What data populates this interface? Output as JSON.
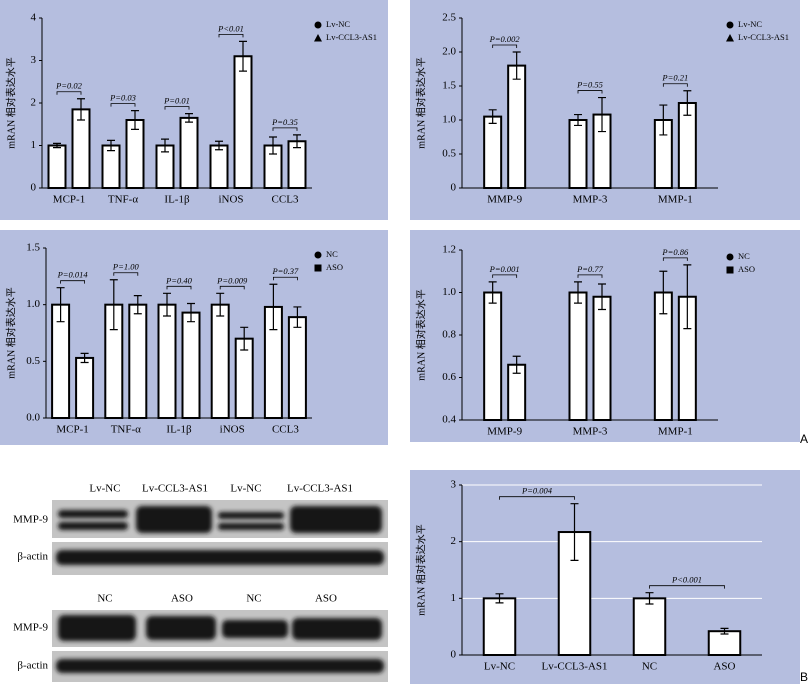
{
  "chart_data": [
    {
      "type": "bar",
      "ylabel": "mRAN 相对表达水平",
      "categories": [
        "MCP-1",
        "TNF-α",
        "IL-1β",
        "iNOS",
        "CCL3"
      ],
      "ylim": [
        0,
        4
      ],
      "yticks": [
        0,
        1,
        2,
        3,
        4
      ],
      "legend": "top-right",
      "series": [
        {
          "name": "Lv-NC",
          "color": "#000000",
          "marker": "circle",
          "values": [
            1.0,
            1.0,
            1.0,
            1.0,
            1.0
          ],
          "errors": [
            0.05,
            0.12,
            0.15,
            0.1,
            0.2
          ]
        },
        {
          "name": "Lv-CCL3-AS1",
          "color": "#000000",
          "marker": "triangle",
          "values": [
            1.85,
            1.6,
            1.65,
            3.1,
            1.1
          ],
          "errors": [
            0.25,
            0.22,
            0.1,
            0.35,
            0.15
          ]
        }
      ],
      "annotations": [
        {
          "text": "P=0.02",
          "category": "MCP-1"
        },
        {
          "text": "P=0.03",
          "category": "TNF-α"
        },
        {
          "text": "P=0.01",
          "category": "IL-1β"
        },
        {
          "text": "P<0.01",
          "category": "iNOS"
        },
        {
          "text": "P=0.35",
          "category": "CCL3"
        }
      ]
    },
    {
      "type": "bar",
      "ylabel": "mRAN 相对表达水平",
      "categories": [
        "MMP-9",
        "MMP-3",
        "MMP-1"
      ],
      "ylim": [
        0,
        2.5
      ],
      "yticks": [
        0,
        0.5,
        {
          "value": 1,
          "label": "1.0"
        },
        1.5,
        {
          "value": 2,
          "label": "2.0"
        },
        2.5
      ],
      "legend": "top-right",
      "series": [
        {
          "name": "Lv-NC",
          "color": "#000000",
          "marker": "circle",
          "values": [
            1.05,
            1.0,
            1.0
          ],
          "errors": [
            0.1,
            0.08,
            0.22
          ]
        },
        {
          "name": "Lv-CCL3-AS1",
          "color": "#000000",
          "marker": "triangle",
          "values": [
            1.8,
            1.08,
            1.25
          ],
          "errors": [
            0.2,
            0.25,
            0.18
          ]
        }
      ],
      "annotations": [
        {
          "text": "P=0.002",
          "category": "MMP-9"
        },
        {
          "text": "P=0.55",
          "category": "MMP-3"
        },
        {
          "text": "P=0.21",
          "category": "MMP-1"
        }
      ]
    },
    {
      "type": "bar",
      "ylabel": "mRAN 相对表达水平",
      "categories": [
        "MCP-1",
        "TNF-α",
        "IL-1β",
        "iNOS",
        "CCL3"
      ],
      "ylim": [
        0,
        1.5
      ],
      "yticks": [
        {
          "value": 0,
          "label": "0.0"
        },
        0.5,
        {
          "value": 1,
          "label": "1.0"
        },
        1.5
      ],
      "legend": "top-right",
      "series": [
        {
          "name": "NC",
          "color": "#000000",
          "marker": "circle",
          "values": [
            1.0,
            1.0,
            1.0,
            1.0,
            0.98
          ],
          "errors": [
            0.15,
            0.22,
            0.1,
            0.1,
            0.2
          ]
        },
        {
          "name": "ASO",
          "color": "#000000",
          "marker": "square",
          "values": [
            0.53,
            1.0,
            0.93,
            0.7,
            0.89
          ],
          "errors": [
            0.04,
            0.08,
            0.08,
            0.1,
            0.09
          ]
        }
      ],
      "annotations": [
        {
          "text": "P=0.014",
          "category": "MCP-1"
        },
        {
          "text": "P=1.00",
          "category": "TNF-α"
        },
        {
          "text": "P=0.40",
          "category": "IL-1β"
        },
        {
          "text": "P=0.009",
          "category": "iNOS"
        },
        {
          "text": "P=0.37",
          "category": "CCL3"
        }
      ]
    },
    {
      "type": "bar",
      "ylabel": "mRAN 相对表达水平",
      "categories": [
        "MMP-9",
        "MMP-3",
        "MMP-1"
      ],
      "ylim": [
        0.4,
        1.2
      ],
      "yticks": [
        0.4,
        0.6,
        0.8,
        {
          "value": 1,
          "label": "1.0"
        },
        1.2
      ],
      "legend": "top-right",
      "series": [
        {
          "name": "NC",
          "color": "#000000",
          "marker": "circle",
          "values": [
            1.0,
            1.0,
            1.0
          ],
          "errors": [
            0.05,
            0.05,
            0.1
          ]
        },
        {
          "name": "ASO",
          "color": "#000000",
          "marker": "square",
          "values": [
            0.66,
            0.98,
            0.98
          ],
          "errors": [
            0.04,
            0.06,
            0.15
          ]
        }
      ],
      "annotations": [
        {
          "text": "P=0.001",
          "category": "MMP-9"
        },
        {
          "text": "P=0.77",
          "category": "MMP-3"
        },
        {
          "text": "P=0.86",
          "category": "MMP-1"
        }
      ]
    },
    {
      "type": "bar",
      "ylabel": "mRAN 相对表达水平",
      "categories": [
        "Lv-NC",
        "Lv-CCL3-AS1",
        "NC",
        "ASO"
      ],
      "ylim": [
        0,
        3
      ],
      "yticks": [
        0,
        1,
        2,
        3
      ],
      "grid": true,
      "series": [
        {
          "color": "#000000",
          "values": [
            1.0,
            2.17,
            1.0,
            0.42
          ],
          "errors": [
            0.08,
            0.5,
            0.1,
            0.05
          ]
        }
      ],
      "annotations": [
        {
          "text": "P=0.004",
          "from": "Lv-NC",
          "to": "Lv-CCL3-AS1"
        },
        {
          "text": "P<0.001",
          "from": "NC",
          "to": "ASO"
        }
      ]
    }
  ],
  "blot": {
    "top": {
      "lanes": [
        "Lv-NC",
        "Lv-CCL3-AS1",
        "Lv-NC",
        "Lv-CCL3-AS1"
      ],
      "rows": [
        "MMP-9",
        "β-actin"
      ]
    },
    "bottom": {
      "lanes": [
        "NC",
        "ASO",
        "NC",
        "ASO"
      ],
      "rows": [
        "MMP-9",
        "β-actin"
      ]
    }
  },
  "panel_labels": [
    "A",
    "B"
  ]
}
